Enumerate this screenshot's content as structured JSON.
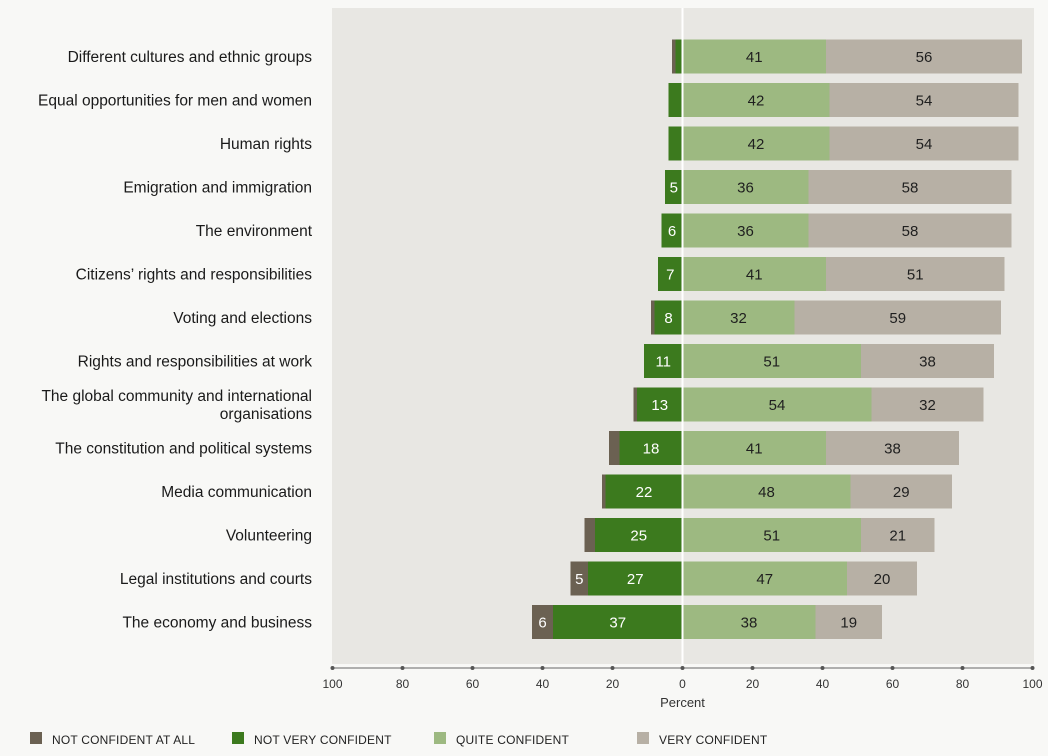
{
  "chart_data": {
    "type": "bar",
    "orientation": "horizontal",
    "stacking": "diverging",
    "xlabel": "Percent",
    "xlim": [
      -100,
      100
    ],
    "xticks": [
      -100,
      -80,
      -60,
      -40,
      -20,
      0,
      20,
      40,
      60,
      80,
      100
    ],
    "xtick_labels": [
      "100",
      "80",
      "60",
      "40",
      "20",
      "0",
      "20",
      "40",
      "60",
      "80",
      "100"
    ],
    "legend_position": "bottom",
    "categories": [
      "Different cultures and ethnic groups",
      "Equal opportunities for men and women",
      "Human rights",
      "Emigration and immigration",
      "The environment",
      "Citizens’ rights and responsibilities",
      "Voting and elections",
      "Rights and responsibilities at work",
      "The global community and international organisations",
      "The constitution and political systems",
      "Media communication",
      "Volunteering",
      "Legal institutions and courts",
      "The economy and business"
    ],
    "category_lines": [
      [
        "Different cultures and ethnic groups"
      ],
      [
        "Equal opportunities for men and women"
      ],
      [
        "Human rights"
      ],
      [
        "Emigration and immigration"
      ],
      [
        "The environment"
      ],
      [
        "Citizens’ rights and responsibilities"
      ],
      [
        "Voting and elections"
      ],
      [
        "Rights and responsibilities at work"
      ],
      [
        "The global community and international",
        "organisations"
      ],
      [
        "The constitution and political systems"
      ],
      [
        "Media communication"
      ],
      [
        "Volunteering"
      ],
      [
        "Legal institutions and courts"
      ],
      [
        "The economy and business"
      ]
    ],
    "series": [
      {
        "name": "NOT CONFIDENT AT ALL",
        "side": "negative",
        "color": "#6b6152",
        "values": [
          1,
          0,
          0,
          0,
          0,
          0,
          1,
          0,
          1,
          3,
          1,
          3,
          5,
          6
        ],
        "labels": [
          "",
          "",
          "",
          "",
          "",
          "",
          "",
          "",
          "",
          "",
          "",
          "",
          "5",
          "6"
        ]
      },
      {
        "name": "NOT VERY CONFIDENT",
        "side": "negative",
        "color": "#3c7a1e",
        "values": [
          2,
          4,
          4,
          5,
          6,
          7,
          8,
          11,
          13,
          18,
          22,
          25,
          27,
          37
        ],
        "labels": [
          "",
          "",
          "",
          "5",
          "6",
          "7",
          "8",
          "11",
          "13",
          "18",
          "22",
          "25",
          "27",
          "37"
        ]
      },
      {
        "name": "QUITE CONFIDENT",
        "side": "positive",
        "color": "#9db981",
        "values": [
          41,
          42,
          42,
          36,
          36,
          41,
          32,
          51,
          54,
          41,
          48,
          51,
          47,
          38
        ],
        "labels": [
          "41",
          "42",
          "42",
          "36",
          "36",
          "41",
          "32",
          "51",
          "54",
          "41",
          "48",
          "51",
          "47",
          "38"
        ]
      },
      {
        "name": "VERY CONFIDENT",
        "side": "positive",
        "color": "#b7b0a5",
        "values": [
          56,
          54,
          54,
          58,
          58,
          51,
          59,
          38,
          32,
          38,
          29,
          21,
          20,
          19
        ],
        "labels": [
          "56",
          "54",
          "54",
          "58",
          "58",
          "51",
          "59",
          "38",
          "32",
          "38",
          "29",
          "21",
          "20",
          "19"
        ]
      }
    ],
    "colors": {
      "plot_background": "#e8e7e3",
      "page_background": "#f8f8f6"
    }
  }
}
